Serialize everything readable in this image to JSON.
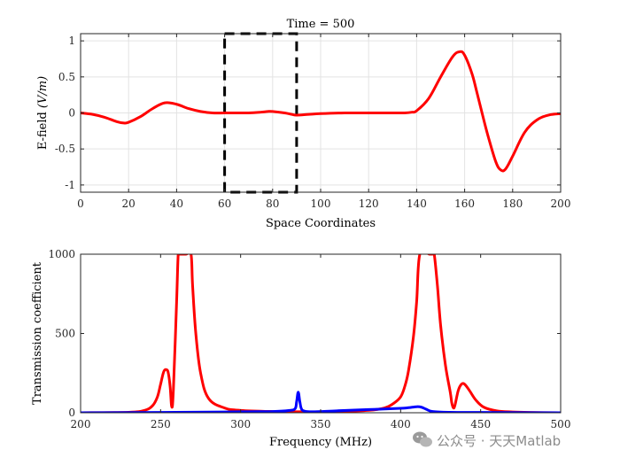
{
  "chart_data": [
    {
      "type": "line",
      "title": "Time = 500",
      "xlabel": "Space Coordinates",
      "ylabel_prefix": "E-field ",
      "ylabel_unit": "(V/m)",
      "xlim": [
        0,
        200
      ],
      "ylim": [
        -1.1,
        1.1
      ],
      "xticks": [
        0,
        20,
        40,
        60,
        80,
        100,
        120,
        140,
        160,
        180,
        200
      ],
      "yticks": [
        -1,
        -0.5,
        0,
        0.5,
        1
      ],
      "ytick_labels": [
        "-1",
        "-0.5",
        "0",
        "0.5",
        "1"
      ],
      "grid": true,
      "annotation": {
        "type": "dashed-rectangle",
        "x": [
          60,
          90
        ],
        "y": [
          -1.1,
          1.1
        ],
        "color": "#000000"
      },
      "series": [
        {
          "color": "#ff0000",
          "x": [
            0,
            5,
            10,
            15,
            18,
            20,
            25,
            30,
            35,
            40,
            45,
            50,
            55,
            60,
            65,
            70,
            75,
            78,
            80,
            85,
            88,
            90,
            95,
            100,
            110,
            120,
            130,
            135,
            138,
            140,
            145,
            150,
            155,
            158,
            160,
            163,
            165,
            168,
            170,
            173,
            175,
            177,
            180,
            185,
            190,
            195,
            200
          ],
          "y": [
            0.0,
            -0.02,
            -0.06,
            -0.12,
            -0.14,
            -0.13,
            -0.05,
            0.06,
            0.14,
            0.12,
            0.06,
            0.02,
            0.0,
            0.0,
            0.0,
            0.0,
            0.01,
            0.02,
            0.02,
            0.0,
            -0.02,
            -0.03,
            -0.02,
            -0.01,
            0.0,
            0.0,
            0.0,
            0.0,
            0.01,
            0.03,
            0.2,
            0.5,
            0.78,
            0.85,
            0.8,
            0.55,
            0.3,
            -0.1,
            -0.35,
            -0.68,
            -0.79,
            -0.78,
            -0.6,
            -0.27,
            -0.1,
            -0.03,
            -0.01
          ]
        }
      ]
    },
    {
      "type": "line",
      "xlabel": "Frequency (MHz)",
      "ylabel": "Transmission coefficient",
      "xlim": [
        200,
        500
      ],
      "ylim": [
        0,
        1000
      ],
      "xticks": [
        200,
        250,
        300,
        350,
        400,
        450,
        500
      ],
      "yticks": [
        0,
        500,
        1000
      ],
      "grid": false,
      "series": [
        {
          "color": "#ff0000",
          "x": [
            200,
            230,
            240,
            245,
            248,
            250,
            252,
            254,
            255,
            256,
            257,
            258,
            260,
            261,
            262,
            266,
            269,
            270,
            272,
            275,
            280,
            290,
            300,
            320,
            340,
            360,
            380,
            390,
            395,
            400,
            403,
            405,
            408,
            410,
            412,
            418,
            420,
            421,
            423,
            425,
            428,
            431,
            432,
            433,
            434,
            436,
            438,
            440,
            443,
            447,
            452,
            460,
            470,
            480,
            500
          ],
          "y": [
            0,
            3,
            15,
            45,
            100,
            180,
            260,
            270,
            240,
            160,
            35,
            150,
            700,
            1000,
            1000,
            1000,
            1000,
            800,
            500,
            250,
            90,
            30,
            15,
            8,
            6,
            7,
            15,
            30,
            55,
            100,
            180,
            270,
            480,
            700,
            1000,
            1000,
            1000,
            1000,
            800,
            550,
            300,
            130,
            60,
            30,
            50,
            140,
            180,
            180,
            140,
            80,
            35,
            12,
            5,
            2,
            0
          ]
        },
        {
          "color": "#0000ff",
          "x": [
            200,
            250,
            300,
            320,
            330,
            334,
            335,
            336,
            337,
            338,
            340,
            345,
            360,
            380,
            400,
            405,
            410,
            413,
            416,
            420,
            430,
            450,
            480,
            500
          ],
          "y": [
            0,
            2,
            6,
            8,
            14,
            25,
            70,
            130,
            70,
            25,
            10,
            6,
            12,
            20,
            28,
            32,
            38,
            35,
            22,
            8,
            3,
            2,
            1,
            0
          ]
        }
      ]
    }
  ],
  "watermark": {
    "icon": "wechat-icon",
    "text": "公众号 · 天天Matlab"
  }
}
